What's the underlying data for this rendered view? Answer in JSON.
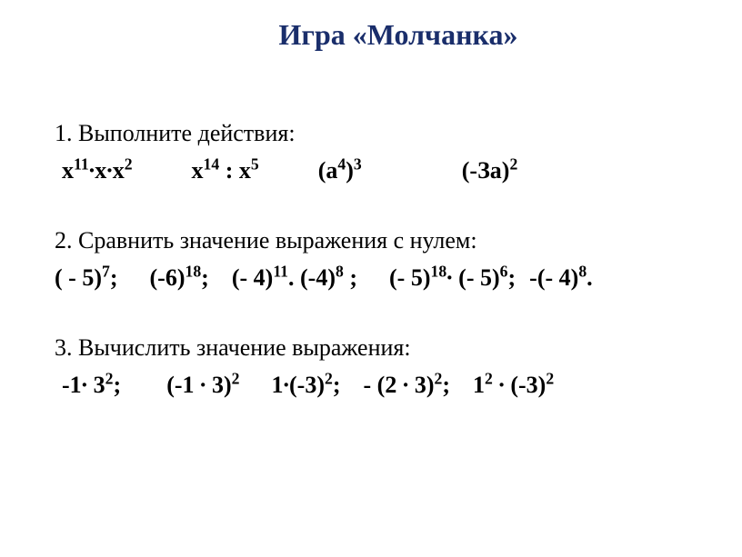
{
  "title": "Игра «Молчанка»",
  "section1": {
    "header": "1. Выполните действия:",
    "items": {
      "e1_base": "х",
      "e1_sup1": "11",
      "e1_mid": "∙х∙х",
      "e1_sup2": "2",
      "e2_base1": "х",
      "e2_sup1": "14",
      "e2_mid": " : х",
      "e2_sup2": "5",
      "e3_open": "(а",
      "e3_sup1": "4",
      "e3_close": ")",
      "e3_sup2": "3",
      "e4_open": "(-За)",
      "e4_sup": "2"
    }
  },
  "section2": {
    "header": "2. Сравнить значение выражения с нулем:",
    "items": {
      "a": "( - 5)",
      "a_sup": "7",
      "a_end": ";",
      "b": "(-6)",
      "b_sup": "18",
      "b_end": ";",
      "c": "(- 4)",
      "c_sup": "11",
      "c_end": ".",
      "d": "(-4)",
      "d_sup": "8",
      "d_end": " ;",
      "e": "(- 5)",
      "e_sup": "18",
      "e_mid": "∙",
      "f": "(- 5)",
      "f_sup": "6",
      "f_end": ";",
      "g": "-(- 4)",
      "g_sup": "8",
      "g_end": "."
    }
  },
  "section3": {
    "header": "3. Вычислить значение выражения:",
    "items": {
      "a": "-1∙ 3",
      "a_sup": "2",
      "a_end": ";",
      "b": "(-1 ∙ 3)",
      "b_sup": "2",
      "c": "1∙(-3)",
      "c_sup": "2",
      "c_end": ";",
      "d": "- (2 ∙ 3)",
      "d_sup": "2",
      "d_end": ";",
      "e": "1",
      "e_sup": "2",
      "e_mid": " ∙ (-3)",
      "e_sup2": "2"
    }
  },
  "colors": {
    "title": "#1a2e6b",
    "text": "#000000",
    "background": "#ffffff"
  },
  "typography": {
    "body_fontsize": 26,
    "title_fontsize": 32,
    "font_family": "Times New Roman"
  }
}
